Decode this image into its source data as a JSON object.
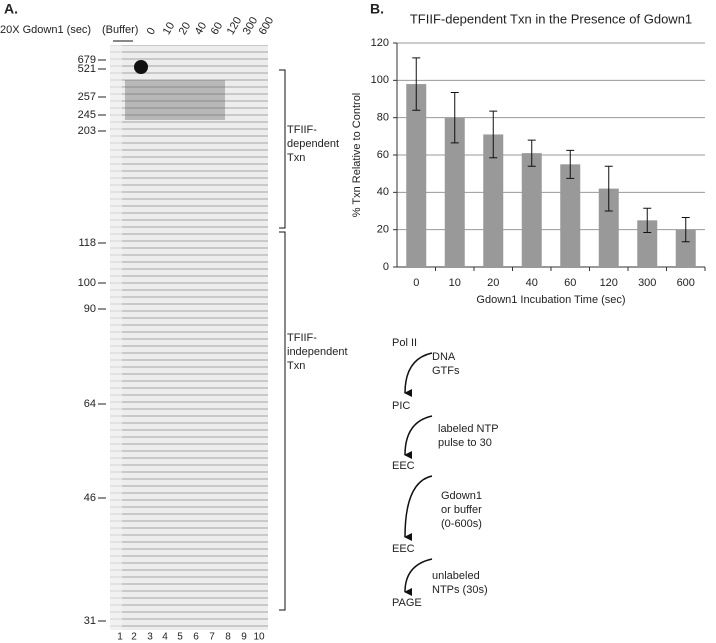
{
  "panel_a": {
    "label": "A.",
    "condition_label": "20X Gdown1 (sec)",
    "buffer_label": "(Buffer)",
    "times": [
      "0",
      "10",
      "20",
      "40",
      "60",
      "120",
      "300",
      "600"
    ],
    "markers": [
      "679",
      "521",
      "257",
      "245",
      "203",
      "118",
      "100",
      "90",
      "64",
      "46",
      "31"
    ],
    "lanes": [
      "1",
      "2",
      "3",
      "4",
      "5",
      "6",
      "7",
      "8",
      "9",
      "10"
    ],
    "brackets": [
      [
        "TFIIF-",
        "dependent",
        "Txn"
      ],
      [
        "TFIIF-",
        "independent",
        "Txn"
      ]
    ]
  },
  "panel_b_label": "B.",
  "chart_data": {
    "type": "bar",
    "title": "TFIIF-dependent Txn in the Presence of Gdown1",
    "y_label": "% Txn Relative to Control",
    "x_label": "Gdown1 Incubation Time (sec)",
    "categories": [
      "0",
      "10",
      "20",
      "40",
      "60",
      "120",
      "300",
      "600"
    ],
    "values": [
      98,
      80,
      71,
      61,
      55,
      42,
      25,
      20
    ],
    "errors": [
      14,
      13.5,
      12.5,
      7,
      7.5,
      12,
      6.5,
      6.5
    ],
    "color": "#999999",
    "ylim": [
      0,
      120
    ],
    "yticks": [
      0,
      20,
      40,
      60,
      80,
      100,
      120
    ],
    "grid": true
  },
  "scheme": {
    "steps": [
      "Pol II",
      "PIC",
      "EEC",
      "EEC",
      "PAGE"
    ],
    "transitions": [
      [
        "DNA",
        "GTFs"
      ],
      [
        "labeled NTP",
        "pulse to 30"
      ],
      [
        "Gdown1",
        "or buffer",
        "(0-600s)"
      ],
      [
        "unlabeled",
        "NTPs (30s)"
      ]
    ]
  }
}
